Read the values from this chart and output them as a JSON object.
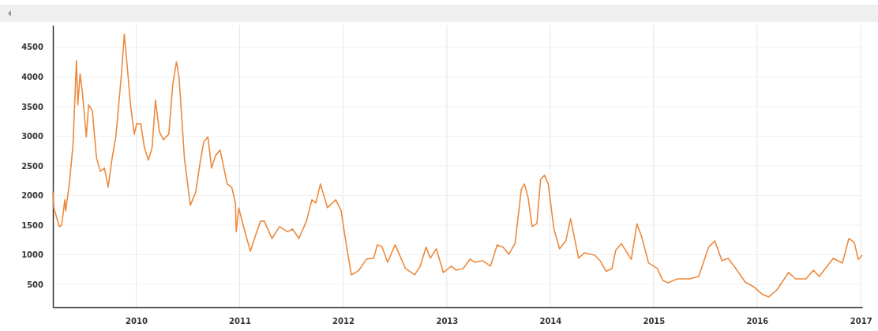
{
  "chart_data": {
    "type": "line",
    "xlim": [
      "2009-03-13",
      "2017-01-06"
    ],
    "xticks": [
      {
        "value": "2010-01-01",
        "label": "2010"
      },
      {
        "value": "2011-01-01",
        "label": "2011"
      },
      {
        "value": "2012-01-01",
        "label": "2012"
      },
      {
        "value": "2013-01-01",
        "label": "2013"
      },
      {
        "value": "2014-01-01",
        "label": "2014"
      },
      {
        "value": "2015-01-01",
        "label": "2015"
      },
      {
        "value": "2016-01-01",
        "label": "2016"
      },
      {
        "value": "2017-01-01",
        "label": "2017"
      }
    ],
    "ylim": [
      113,
      4870
    ],
    "yticks": [
      500,
      1000,
      1500,
      2000,
      2500,
      3000,
      3500,
      4000,
      4500
    ],
    "grid": true,
    "marker": "none",
    "line_style": "solid",
    "series": [
      {
        "color": "#ec8a3e",
        "x": [
          "2009-03-13",
          "2009-03-16",
          "2009-04-05",
          "2009-04-13",
          "2009-04-24",
          "2009-04-27",
          "2009-05-10",
          "2009-05-23",
          "2009-06-04",
          "2009-06-09",
          "2009-06-17",
          "2009-06-25",
          "2009-07-09",
          "2009-07-17",
          "2009-07-30",
          "2009-08-14",
          "2009-08-27",
          "2009-09-11",
          "2009-09-24",
          "2009-10-08",
          "2009-10-21",
          "2009-11-10",
          "2009-11-20",
          "2009-12-01",
          "2009-12-12",
          "2009-12-25",
          "2010-01-03",
          "2010-01-17",
          "2010-01-30",
          "2010-02-13",
          "2010-02-26",
          "2010-03-10",
          "2010-03-24",
          "2010-04-07",
          "2010-04-26",
          "2010-05-10",
          "2010-05-23",
          "2010-06-01",
          "2010-06-20",
          "2010-07-11",
          "2010-07-30",
          "2010-08-14",
          "2010-08-27",
          "2010-09-11",
          "2010-09-24",
          "2010-10-08",
          "2010-10-24",
          "2010-11-18",
          "2010-12-04",
          "2010-12-17",
          "2010-12-20",
          "2010-12-29",
          "2011-01-17",
          "2011-02-08",
          "2011-02-27",
          "2011-03-16",
          "2011-03-29",
          "2011-04-25",
          "2011-05-22",
          "2011-06-19",
          "2011-07-07",
          "2011-07-29",
          "2011-08-25",
          "2011-09-13",
          "2011-09-27",
          "2011-10-13",
          "2011-11-07",
          "2011-12-06",
          "2011-12-25",
          "2012-01-08",
          "2012-01-30",
          "2012-02-24",
          "2012-03-24",
          "2012-04-18",
          "2012-05-01",
          "2012-05-17",
          "2012-06-06",
          "2012-07-03",
          "2012-08-08",
          "2012-09-10",
          "2012-09-29",
          "2012-10-20",
          "2012-11-04",
          "2012-11-25",
          "2012-12-20",
          "2013-01-17",
          "2013-02-02",
          "2013-02-28",
          "2013-03-24",
          "2013-04-10",
          "2013-05-07",
          "2013-06-04",
          "2013-06-28",
          "2013-07-19",
          "2013-08-08",
          "2013-08-30",
          "2013-09-21",
          "2013-10-02",
          "2013-10-15",
          "2013-10-29",
          "2013-11-15",
          "2013-11-28",
          "2013-12-12",
          "2013-12-25",
          "2014-01-14",
          "2014-02-03",
          "2014-02-25",
          "2014-03-14",
          "2014-04-11",
          "2014-05-02",
          "2014-06-07",
          "2014-06-26",
          "2014-07-17",
          "2014-08-07",
          "2014-08-20",
          "2014-09-09",
          "2014-10-14",
          "2014-11-03",
          "2014-11-20",
          "2014-12-14",
          "2015-01-14",
          "2015-02-02",
          "2015-02-21",
          "2015-03-26",
          "2015-05-07",
          "2015-06-09",
          "2015-06-25",
          "2015-07-14",
          "2015-08-05",
          "2015-08-30",
          "2015-09-21",
          "2015-10-18",
          "2015-11-20",
          "2015-12-20",
          "2016-01-17",
          "2016-02-11",
          "2016-03-11",
          "2016-04-21",
          "2016-05-16",
          "2016-06-21",
          "2016-07-18",
          "2016-08-07",
          "2016-09-26",
          "2016-10-28",
          "2016-11-20",
          "2016-12-09",
          "2016-12-23",
          "2017-01-06"
        ],
        "values": [
          2067,
          1793,
          1473,
          1500,
          1927,
          1740,
          2193,
          2860,
          4273,
          3527,
          4053,
          3740,
          2987,
          3527,
          3433,
          2633,
          2407,
          2460,
          2140,
          2633,
          2987,
          4053,
          4720,
          4140,
          3527,
          3033,
          3207,
          3207,
          2807,
          2593,
          2807,
          3607,
          3073,
          2940,
          3033,
          3873,
          4253,
          4007,
          2633,
          1833,
          2053,
          2540,
          2900,
          2987,
          2460,
          2673,
          2767,
          2193,
          2140,
          1873,
          1387,
          1787,
          1433,
          1060,
          1340,
          1567,
          1567,
          1273,
          1473,
          1387,
          1433,
          1273,
          1567,
          1927,
          1873,
          2193,
          1793,
          1927,
          1747,
          1300,
          660,
          727,
          927,
          940,
          1167,
          1140,
          873,
          1167,
          767,
          660,
          807,
          1127,
          940,
          1100,
          700,
          807,
          740,
          767,
          927,
          873,
          900,
          807,
          1167,
          1127,
          1007,
          1193,
          2100,
          2193,
          1967,
          1473,
          1527,
          2273,
          2340,
          2193,
          1433,
          1100,
          1233,
          1607,
          940,
          1033,
          993,
          900,
          720,
          767,
          1073,
          1187,
          920,
          1520,
          1300,
          860,
          767,
          567,
          527,
          593,
          593,
          633,
          860,
          1127,
          1233,
          900,
          940,
          767,
          540,
          460,
          340,
          287,
          407,
          700,
          593,
          593,
          740,
          633,
          940,
          860,
          1273,
          1207,
          920,
          993
        ]
      }
    ]
  }
}
